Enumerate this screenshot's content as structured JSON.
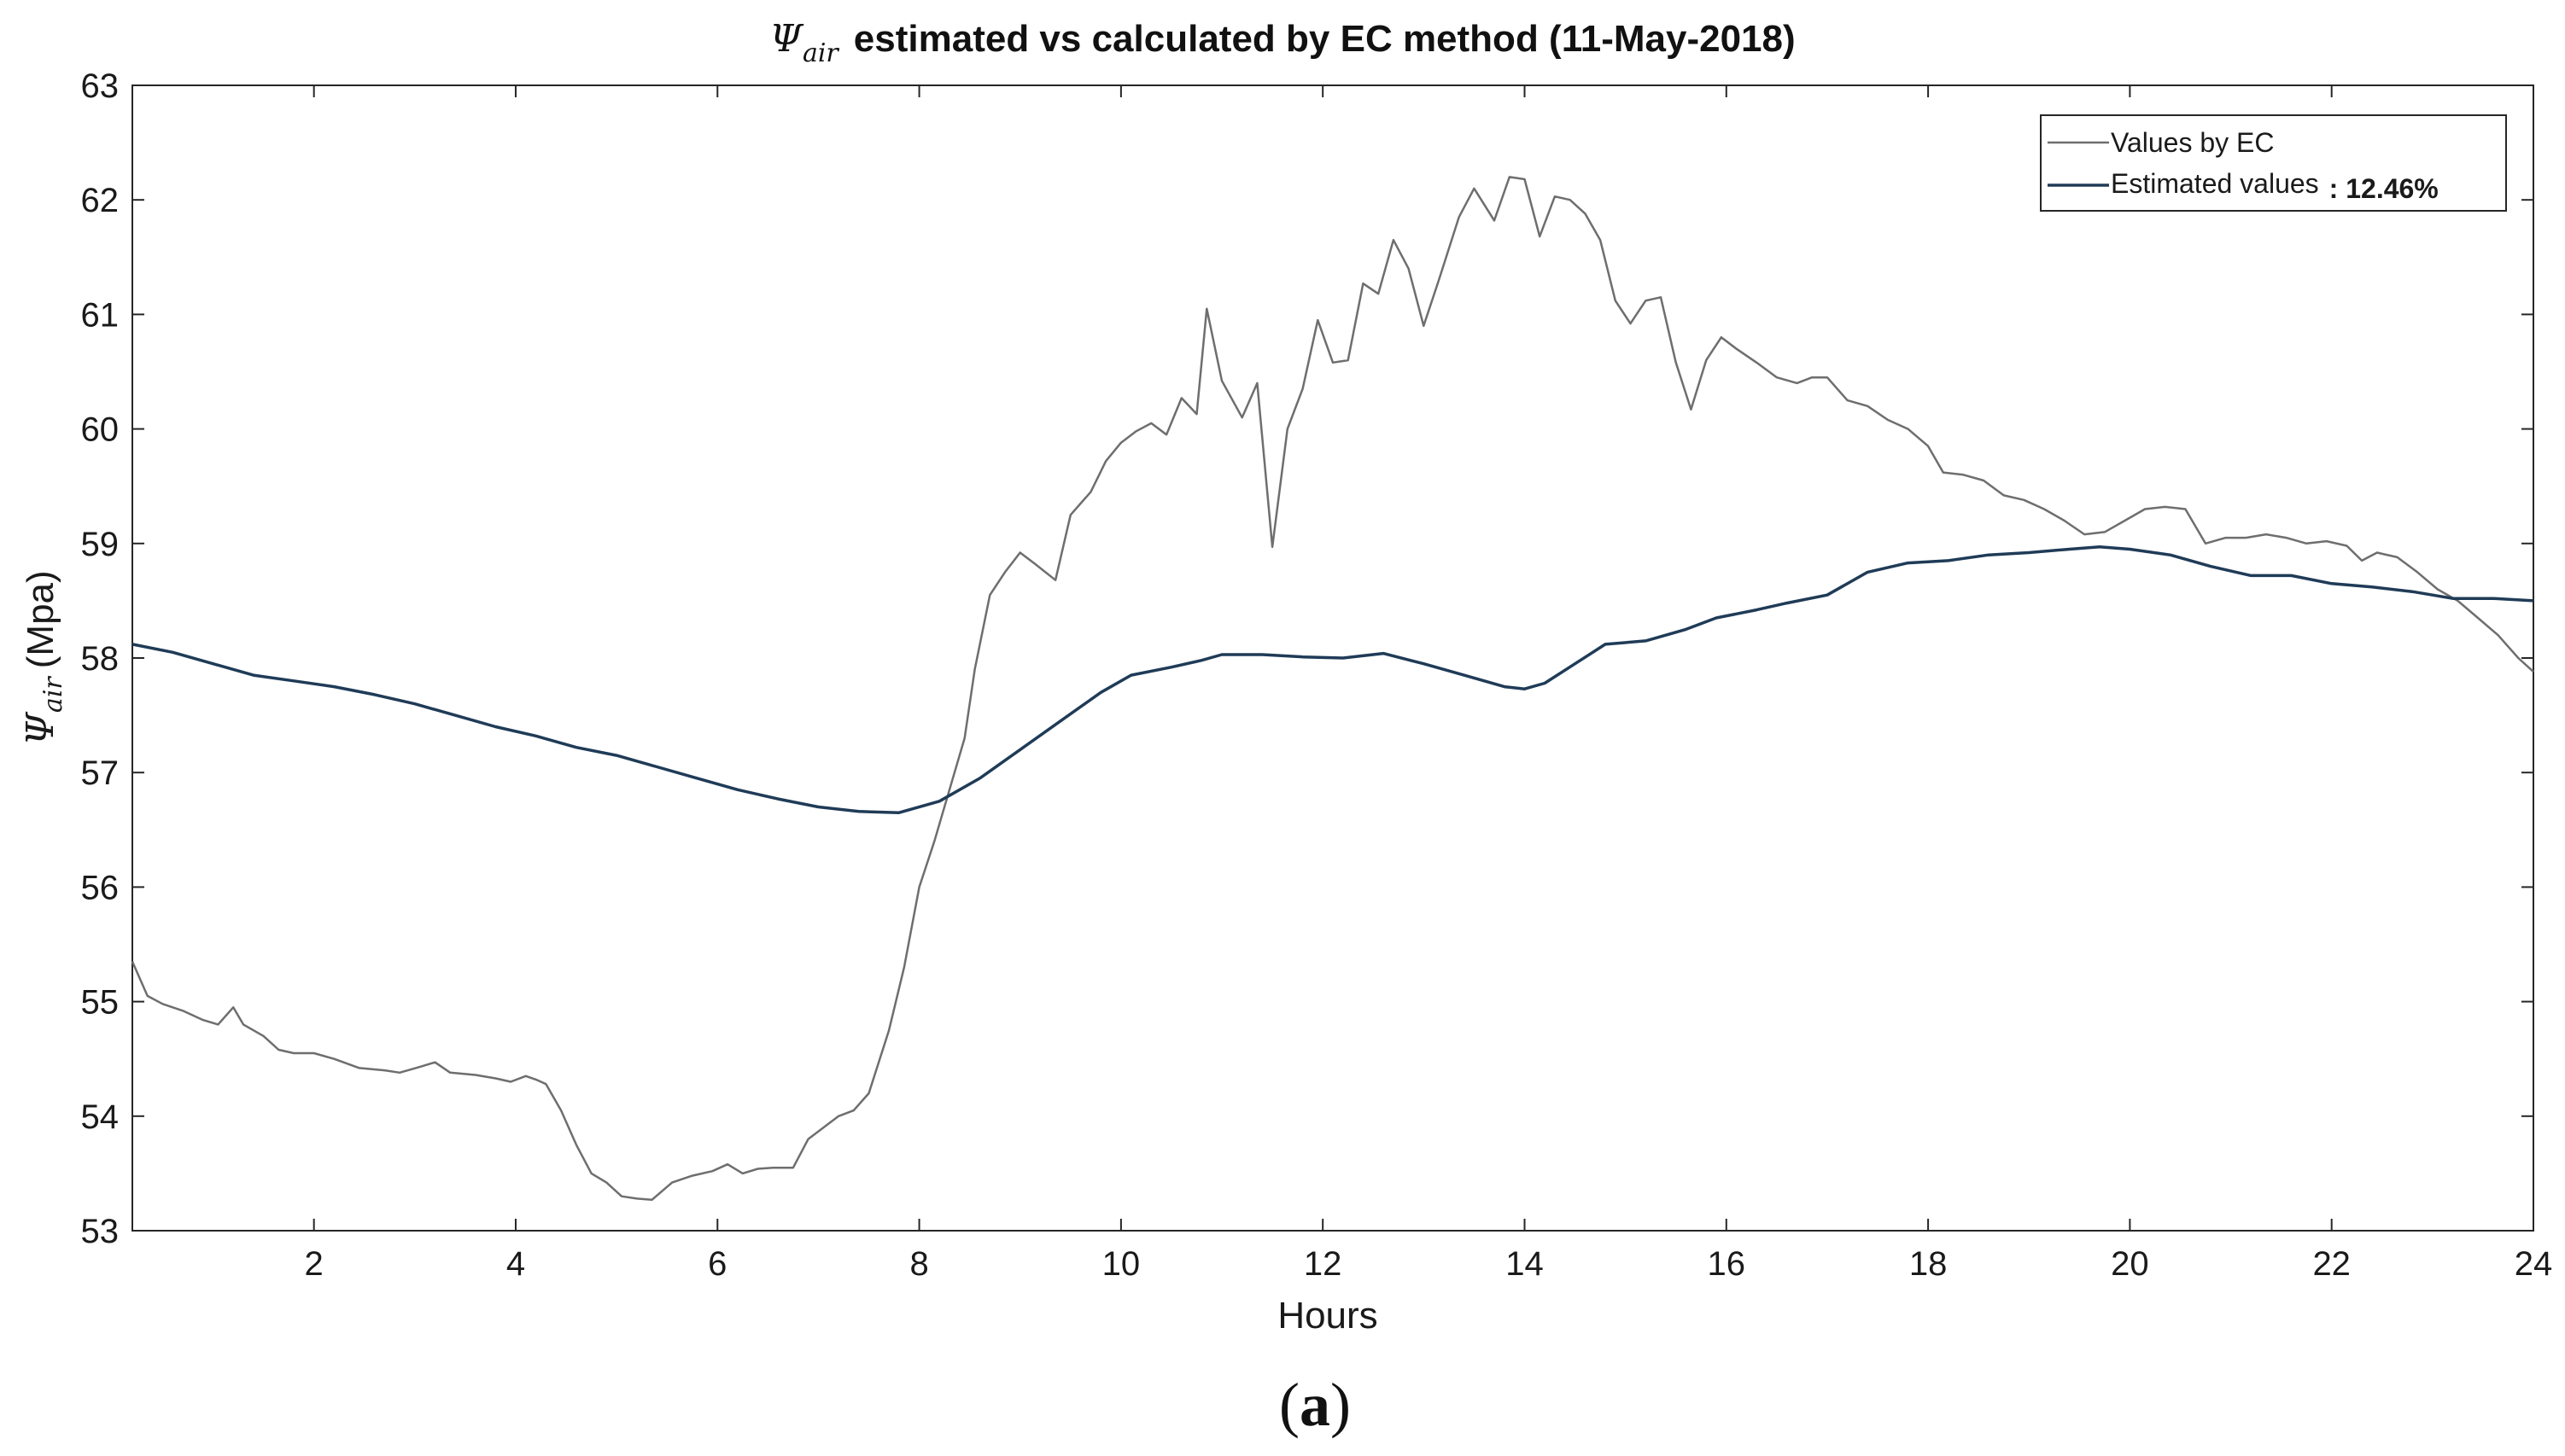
{
  "chart_data": {
    "type": "line",
    "title": {
      "symbol": "Ψ",
      "subscript": "air",
      "rest": "estimated vs calculated by EC method (11-May-2018)"
    },
    "xlabel": "Hours",
    "ylabel": {
      "symbol": "Ψ",
      "subscript": "air",
      "rest": "(Mpa)"
    },
    "xlim": [
      0.2,
      24
    ],
    "ylim": [
      53,
      63
    ],
    "x_ticks": [
      2,
      4,
      6,
      8,
      10,
      12,
      14,
      16,
      18,
      20,
      22,
      24
    ],
    "y_ticks": [
      53,
      54,
      55,
      56,
      57,
      58,
      59,
      60,
      61,
      62,
      63
    ],
    "grid": false,
    "legend_position": "top-right",
    "legend": {
      "ec_label": "Values by EC",
      "est_label": "Estimated values",
      "est_annotation": ": 12.46%"
    },
    "series": [
      {
        "name": "Values by EC",
        "color": "#6e6e6e",
        "points": [
          [
            0.2,
            55.35
          ],
          [
            0.35,
            55.05
          ],
          [
            0.5,
            54.98
          ],
          [
            0.7,
            54.92
          ],
          [
            0.9,
            54.84
          ],
          [
            1.05,
            54.8
          ],
          [
            1.2,
            54.95
          ],
          [
            1.3,
            54.8
          ],
          [
            1.5,
            54.7
          ],
          [
            1.65,
            54.58
          ],
          [
            1.8,
            54.55
          ],
          [
            2.0,
            54.55
          ],
          [
            2.2,
            54.5
          ],
          [
            2.45,
            54.42
          ],
          [
            2.7,
            54.4
          ],
          [
            2.85,
            54.38
          ],
          [
            3.05,
            54.43
          ],
          [
            3.2,
            54.47
          ],
          [
            3.35,
            54.38
          ],
          [
            3.6,
            54.36
          ],
          [
            3.8,
            54.33
          ],
          [
            3.95,
            54.3
          ],
          [
            4.1,
            54.35
          ],
          [
            4.2,
            54.32
          ],
          [
            4.3,
            54.28
          ],
          [
            4.45,
            54.05
          ],
          [
            4.6,
            53.75
          ],
          [
            4.75,
            53.5
          ],
          [
            4.9,
            53.42
          ],
          [
            5.05,
            53.3
          ],
          [
            5.2,
            53.28
          ],
          [
            5.35,
            53.27
          ],
          [
            5.55,
            53.42
          ],
          [
            5.75,
            53.48
          ],
          [
            5.95,
            53.52
          ],
          [
            6.1,
            53.58
          ],
          [
            6.25,
            53.5
          ],
          [
            6.4,
            53.54
          ],
          [
            6.55,
            53.55
          ],
          [
            6.75,
            53.55
          ],
          [
            6.9,
            53.8
          ],
          [
            7.05,
            53.9
          ],
          [
            7.2,
            54.0
          ],
          [
            7.35,
            54.05
          ],
          [
            7.5,
            54.2
          ],
          [
            7.7,
            54.75
          ],
          [
            7.85,
            55.3
          ],
          [
            8.0,
            56.0
          ],
          [
            8.15,
            56.4
          ],
          [
            8.3,
            56.85
          ],
          [
            8.45,
            57.3
          ],
          [
            8.55,
            57.9
          ],
          [
            8.7,
            58.55
          ],
          [
            8.85,
            58.75
          ],
          [
            9.0,
            58.92
          ],
          [
            9.15,
            58.82
          ],
          [
            9.35,
            58.68
          ],
          [
            9.5,
            59.25
          ],
          [
            9.7,
            59.45
          ],
          [
            9.85,
            59.72
          ],
          [
            10.0,
            59.88
          ],
          [
            10.15,
            59.98
          ],
          [
            10.3,
            60.05
          ],
          [
            10.45,
            59.95
          ],
          [
            10.6,
            60.27
          ],
          [
            10.75,
            60.13
          ],
          [
            10.85,
            61.05
          ],
          [
            11.0,
            60.42
          ],
          [
            11.2,
            60.1
          ],
          [
            11.35,
            60.4
          ],
          [
            11.5,
            58.97
          ],
          [
            11.65,
            60.0
          ],
          [
            11.8,
            60.35
          ],
          [
            11.95,
            60.95
          ],
          [
            12.1,
            60.58
          ],
          [
            12.25,
            60.6
          ],
          [
            12.4,
            61.27
          ],
          [
            12.55,
            61.18
          ],
          [
            12.7,
            61.65
          ],
          [
            12.85,
            61.4
          ],
          [
            13.0,
            60.9
          ],
          [
            13.15,
            61.3
          ],
          [
            13.35,
            61.85
          ],
          [
            13.5,
            62.1
          ],
          [
            13.7,
            61.82
          ],
          [
            13.85,
            62.2
          ],
          [
            14.0,
            62.18
          ],
          [
            14.15,
            61.68
          ],
          [
            14.3,
            62.03
          ],
          [
            14.45,
            62.0
          ],
          [
            14.6,
            61.88
          ],
          [
            14.75,
            61.65
          ],
          [
            14.9,
            61.12
          ],
          [
            15.05,
            60.92
          ],
          [
            15.2,
            61.12
          ],
          [
            15.35,
            61.15
          ],
          [
            15.5,
            60.58
          ],
          [
            15.65,
            60.17
          ],
          [
            15.8,
            60.6
          ],
          [
            15.95,
            60.8
          ],
          [
            16.1,
            60.7
          ],
          [
            16.3,
            60.58
          ],
          [
            16.5,
            60.45
          ],
          [
            16.7,
            60.4
          ],
          [
            16.85,
            60.45
          ],
          [
            17.0,
            60.45
          ],
          [
            17.2,
            60.25
          ],
          [
            17.4,
            60.2
          ],
          [
            17.6,
            60.08
          ],
          [
            17.8,
            60.0
          ],
          [
            18.0,
            59.85
          ],
          [
            18.15,
            59.62
          ],
          [
            18.35,
            59.6
          ],
          [
            18.55,
            59.55
          ],
          [
            18.75,
            59.42
          ],
          [
            18.95,
            59.38
          ],
          [
            19.15,
            59.3
          ],
          [
            19.35,
            59.2
          ],
          [
            19.55,
            59.08
          ],
          [
            19.75,
            59.1
          ],
          [
            19.95,
            59.2
          ],
          [
            20.15,
            59.3
          ],
          [
            20.35,
            59.32
          ],
          [
            20.55,
            59.3
          ],
          [
            20.75,
            59.0
          ],
          [
            20.95,
            59.05
          ],
          [
            21.15,
            59.05
          ],
          [
            21.35,
            59.08
          ],
          [
            21.55,
            59.05
          ],
          [
            21.75,
            59.0
          ],
          [
            21.95,
            59.02
          ],
          [
            22.15,
            58.98
          ],
          [
            22.3,
            58.85
          ],
          [
            22.45,
            58.92
          ],
          [
            22.65,
            58.88
          ],
          [
            22.85,
            58.75
          ],
          [
            23.05,
            58.6
          ],
          [
            23.25,
            58.5
          ],
          [
            23.45,
            58.35
          ],
          [
            23.65,
            58.2
          ],
          [
            23.85,
            58.0
          ],
          [
            24.0,
            57.88
          ]
        ]
      },
      {
        "name": "Estimated values",
        "color": "#1f3b57",
        "points": [
          [
            0.2,
            58.12
          ],
          [
            0.6,
            58.05
          ],
          [
            1.0,
            57.95
          ],
          [
            1.4,
            57.85
          ],
          [
            1.8,
            57.8
          ],
          [
            2.2,
            57.75
          ],
          [
            2.6,
            57.68
          ],
          [
            3.0,
            57.6
          ],
          [
            3.4,
            57.5
          ],
          [
            3.8,
            57.4
          ],
          [
            4.2,
            57.32
          ],
          [
            4.6,
            57.22
          ],
          [
            5.0,
            57.15
          ],
          [
            5.4,
            57.05
          ],
          [
            5.8,
            56.95
          ],
          [
            6.2,
            56.85
          ],
          [
            6.6,
            56.77
          ],
          [
            7.0,
            56.7
          ],
          [
            7.4,
            56.66
          ],
          [
            7.8,
            56.65
          ],
          [
            8.2,
            56.75
          ],
          [
            8.6,
            56.95
          ],
          [
            9.0,
            57.2
          ],
          [
            9.4,
            57.45
          ],
          [
            9.8,
            57.7
          ],
          [
            10.1,
            57.85
          ],
          [
            10.5,
            57.92
          ],
          [
            10.8,
            57.98
          ],
          [
            11.0,
            58.03
          ],
          [
            11.4,
            58.03
          ],
          [
            11.8,
            58.01
          ],
          [
            12.2,
            58.0
          ],
          [
            12.6,
            58.04
          ],
          [
            13.0,
            57.95
          ],
          [
            13.4,
            57.85
          ],
          [
            13.8,
            57.75
          ],
          [
            14.0,
            57.73
          ],
          [
            14.2,
            57.78
          ],
          [
            14.5,
            57.95
          ],
          [
            14.8,
            58.12
          ],
          [
            15.2,
            58.15
          ],
          [
            15.6,
            58.25
          ],
          [
            15.9,
            58.35
          ],
          [
            16.3,
            58.42
          ],
          [
            16.6,
            58.48
          ],
          [
            17.0,
            58.55
          ],
          [
            17.4,
            58.75
          ],
          [
            17.8,
            58.83
          ],
          [
            18.2,
            58.85
          ],
          [
            18.6,
            58.9
          ],
          [
            19.0,
            58.92
          ],
          [
            19.4,
            58.95
          ],
          [
            19.7,
            58.97
          ],
          [
            20.0,
            58.95
          ],
          [
            20.4,
            58.9
          ],
          [
            20.8,
            58.8
          ],
          [
            21.2,
            58.72
          ],
          [
            21.6,
            58.72
          ],
          [
            22.0,
            58.65
          ],
          [
            22.4,
            58.62
          ],
          [
            22.8,
            58.58
          ],
          [
            23.2,
            58.52
          ],
          [
            23.6,
            58.52
          ],
          [
            24.0,
            58.5
          ]
        ]
      }
    ]
  },
  "caption": {
    "open": "(",
    "letter": "a",
    "close": ")"
  }
}
